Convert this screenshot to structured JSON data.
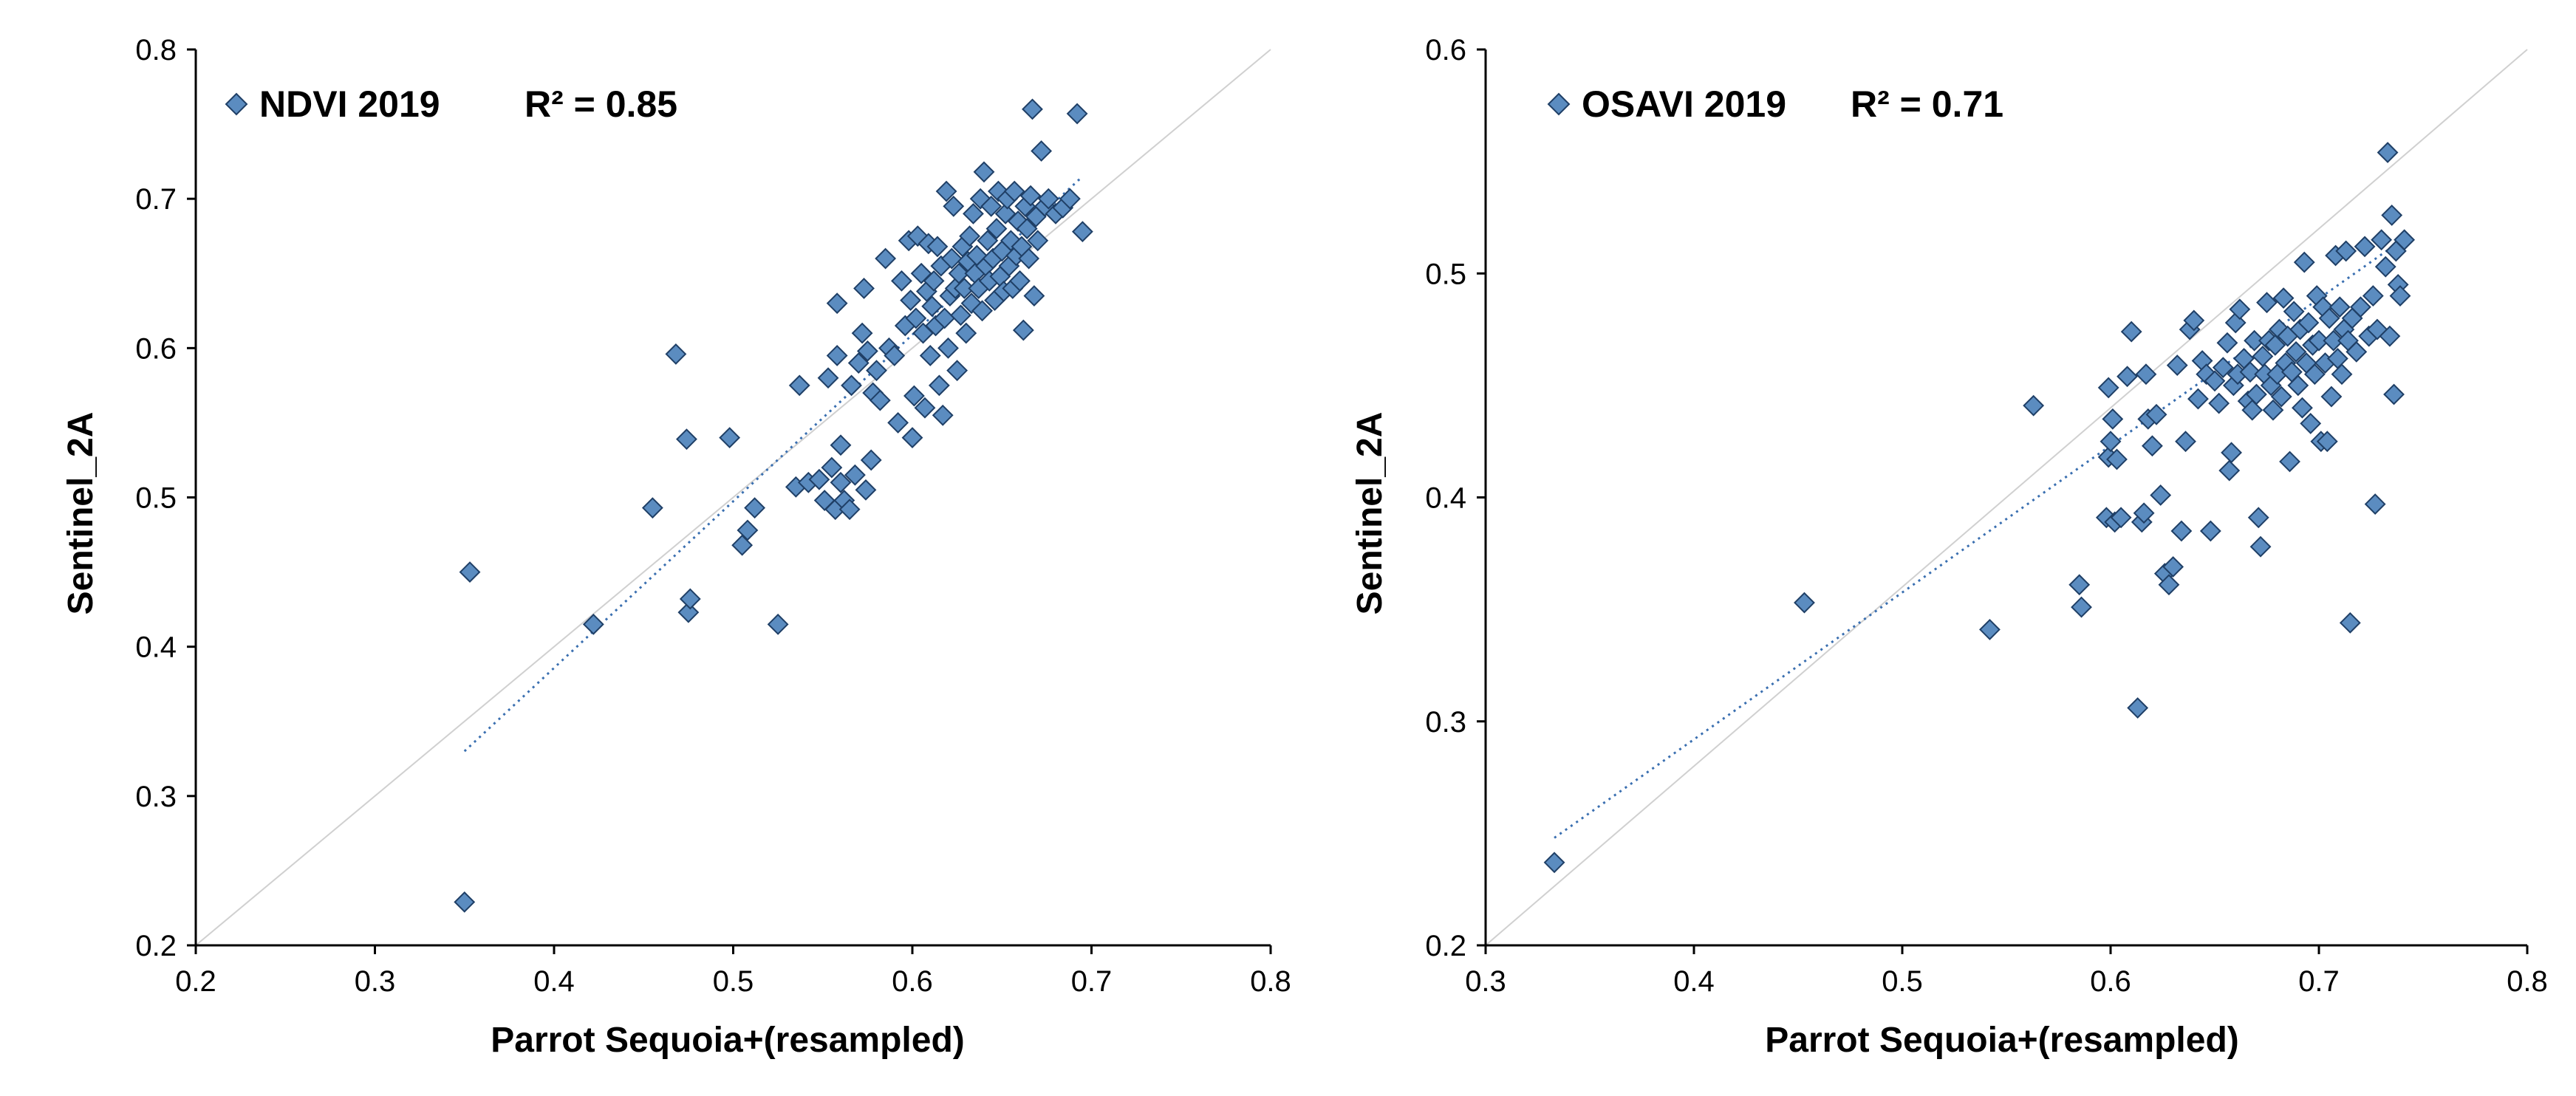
{
  "colors": {
    "marker_fill": "#5b8cc0",
    "marker_stroke": "#1f3f66",
    "trend": "#3a6fb0",
    "one_to_one": "#d0d0d0",
    "axis": "#000000"
  },
  "marker_icon": "diamond-marker-icon",
  "chart_data": [
    {
      "type": "scatter",
      "legend_label": "NDVI 2019",
      "r2_label": "R² = 0.85",
      "xlabel": "Parrot Sequoia+(resampled)",
      "ylabel": "Sentinel_2A",
      "xlim": [
        0.2,
        0.8
      ],
      "ylim": [
        0.2,
        0.8
      ],
      "xticks": [
        "0.2",
        "0.3",
        "0.4",
        "0.5",
        "0.6",
        "0.7",
        "0.8"
      ],
      "yticks": [
        "0.2",
        "0.3",
        "0.4",
        "0.5",
        "0.6",
        "0.7",
        "0.8"
      ],
      "legend_position": "top-left",
      "one_to_one_line": [
        [
          0.2,
          0.2
        ],
        [
          0.8,
          0.8
        ]
      ],
      "trendline": [
        [
          0.35,
          0.33
        ],
        [
          0.695,
          0.715
        ]
      ],
      "points": [
        [
          0.35,
          0.229
        ],
        [
          0.353,
          0.45
        ],
        [
          0.422,
          0.415
        ],
        [
          0.455,
          0.493
        ],
        [
          0.468,
          0.596
        ],
        [
          0.474,
          0.539
        ],
        [
          0.475,
          0.423
        ],
        [
          0.476,
          0.432
        ],
        [
          0.498,
          0.54
        ],
        [
          0.505,
          0.468
        ],
        [
          0.508,
          0.478
        ],
        [
          0.512,
          0.493
        ],
        [
          0.525,
          0.415
        ],
        [
          0.535,
          0.507
        ],
        [
          0.537,
          0.575
        ],
        [
          0.542,
          0.51
        ],
        [
          0.548,
          0.512
        ],
        [
          0.551,
          0.498
        ],
        [
          0.553,
          0.58
        ],
        [
          0.555,
          0.52
        ],
        [
          0.557,
          0.492
        ],
        [
          0.558,
          0.63
        ],
        [
          0.558,
          0.595
        ],
        [
          0.56,
          0.535
        ],
        [
          0.56,
          0.51
        ],
        [
          0.562,
          0.498
        ],
        [
          0.565,
          0.492
        ],
        [
          0.566,
          0.575
        ],
        [
          0.568,
          0.515
        ],
        [
          0.57,
          0.59
        ],
        [
          0.572,
          0.61
        ],
        [
          0.573,
          0.64
        ],
        [
          0.574,
          0.505
        ],
        [
          0.575,
          0.598
        ],
        [
          0.577,
          0.525
        ],
        [
          0.578,
          0.57
        ],
        [
          0.58,
          0.585
        ],
        [
          0.582,
          0.565
        ],
        [
          0.585,
          0.66
        ],
        [
          0.587,
          0.6
        ],
        [
          0.59,
          0.595
        ],
        [
          0.592,
          0.55
        ],
        [
          0.594,
          0.645
        ],
        [
          0.596,
          0.615
        ],
        [
          0.598,
          0.672
        ],
        [
          0.599,
          0.632
        ],
        [
          0.6,
          0.54
        ],
        [
          0.601,
          0.568
        ],
        [
          0.602,
          0.62
        ],
        [
          0.603,
          0.675
        ],
        [
          0.605,
          0.65
        ],
        [
          0.606,
          0.61
        ],
        [
          0.607,
          0.56
        ],
        [
          0.608,
          0.638
        ],
        [
          0.609,
          0.67
        ],
        [
          0.61,
          0.595
        ],
        [
          0.611,
          0.628
        ],
        [
          0.612,
          0.645
        ],
        [
          0.613,
          0.615
        ],
        [
          0.614,
          0.668
        ],
        [
          0.615,
          0.575
        ],
        [
          0.616,
          0.655
        ],
        [
          0.617,
          0.555
        ],
        [
          0.618,
          0.62
        ],
        [
          0.619,
          0.705
        ],
        [
          0.62,
          0.6
        ],
        [
          0.621,
          0.635
        ],
        [
          0.622,
          0.66
        ],
        [
          0.623,
          0.695
        ],
        [
          0.624,
          0.64
        ],
        [
          0.625,
          0.585
        ],
        [
          0.626,
          0.65
        ],
        [
          0.627,
          0.622
        ],
        [
          0.628,
          0.668
        ],
        [
          0.629,
          0.64
        ],
        [
          0.63,
          0.61
        ],
        [
          0.631,
          0.658
        ],
        [
          0.632,
          0.675
        ],
        [
          0.633,
          0.63
        ],
        [
          0.634,
          0.69
        ],
        [
          0.635,
          0.65
        ],
        [
          0.636,
          0.662
        ],
        [
          0.637,
          0.64
        ],
        [
          0.638,
          0.7
        ],
        [
          0.639,
          0.625
        ],
        [
          0.64,
          0.718
        ],
        [
          0.641,
          0.655
        ],
        [
          0.642,
          0.672
        ],
        [
          0.643,
          0.645
        ],
        [
          0.644,
          0.695
        ],
        [
          0.645,
          0.66
        ],
        [
          0.646,
          0.632
        ],
        [
          0.647,
          0.68
        ],
        [
          0.648,
          0.705
        ],
        [
          0.649,
          0.648
        ],
        [
          0.65,
          0.665
        ],
        [
          0.651,
          0.638
        ],
        [
          0.652,
          0.69
        ],
        [
          0.653,
          0.7
        ],
        [
          0.654,
          0.655
        ],
        [
          0.655,
          0.672
        ],
        [
          0.656,
          0.64
        ],
        [
          0.657,
          0.705
        ],
        [
          0.658,
          0.662
        ],
        [
          0.659,
          0.685
        ],
        [
          0.66,
          0.645
        ],
        [
          0.661,
          0.668
        ],
        [
          0.662,
          0.612
        ],
        [
          0.663,
          0.695
        ],
        [
          0.664,
          0.68
        ],
        [
          0.665,
          0.66
        ],
        [
          0.666,
          0.702
        ],
        [
          0.667,
          0.76
        ],
        [
          0.668,
          0.635
        ],
        [
          0.669,
          0.688
        ],
        [
          0.67,
          0.672
        ],
        [
          0.672,
          0.732
        ],
        [
          0.674,
          0.695
        ],
        [
          0.676,
          0.7
        ],
        [
          0.68,
          0.69
        ],
        [
          0.684,
          0.694
        ],
        [
          0.688,
          0.7
        ],
        [
          0.692,
          0.757
        ],
        [
          0.695,
          0.678
        ]
      ]
    },
    {
      "type": "scatter",
      "legend_label": "OSAVI 2019",
      "r2_label": "R² = 0.71",
      "xlabel": "Parrot Sequoia+(resampled)",
      "ylabel": "Sentinel_2A",
      "xlim": [
        0.3,
        0.8
      ],
      "ylim": [
        0.2,
        0.6
      ],
      "xticks": [
        "0.3",
        "0.4",
        "0.5",
        "0.6",
        "0.7",
        "0.8"
      ],
      "yticks": [
        "0.2",
        "0.3",
        "0.4",
        "0.5",
        "0.6"
      ],
      "legend_position": "top-left",
      "one_to_one_line": [
        [
          0.3,
          0.2
        ],
        [
          0.8,
          0.6
        ]
      ],
      "trendline": [
        [
          0.333,
          0.248
        ],
        [
          0.74,
          0.515
        ]
      ],
      "points": [
        [
          0.333,
          0.237
        ],
        [
          0.453,
          0.353
        ],
        [
          0.542,
          0.341
        ],
        [
          0.563,
          0.441
        ],
        [
          0.585,
          0.361
        ],
        [
          0.586,
          0.351
        ],
        [
          0.598,
          0.391
        ],
        [
          0.599,
          0.418
        ],
        [
          0.599,
          0.449
        ],
        [
          0.6,
          0.425
        ],
        [
          0.601,
          0.435
        ],
        [
          0.602,
          0.389
        ],
        [
          0.603,
          0.417
        ],
        [
          0.605,
          0.391
        ],
        [
          0.608,
          0.454
        ],
        [
          0.61,
          0.474
        ],
        [
          0.613,
          0.306
        ],
        [
          0.615,
          0.389
        ],
        [
          0.616,
          0.393
        ],
        [
          0.617,
          0.455
        ],
        [
          0.618,
          0.435
        ],
        [
          0.62,
          0.423
        ],
        [
          0.622,
          0.437
        ],
        [
          0.624,
          0.401
        ],
        [
          0.626,
          0.366
        ],
        [
          0.628,
          0.361
        ],
        [
          0.63,
          0.369
        ],
        [
          0.632,
          0.459
        ],
        [
          0.634,
          0.385
        ],
        [
          0.636,
          0.425
        ],
        [
          0.638,
          0.475
        ],
        [
          0.64,
          0.479
        ],
        [
          0.642,
          0.444
        ],
        [
          0.644,
          0.461
        ],
        [
          0.646,
          0.455
        ],
        [
          0.648,
          0.385
        ],
        [
          0.65,
          0.452
        ],
        [
          0.652,
          0.442
        ],
        [
          0.654,
          0.458
        ],
        [
          0.656,
          0.469
        ],
        [
          0.657,
          0.412
        ],
        [
          0.658,
          0.42
        ],
        [
          0.659,
          0.45
        ],
        [
          0.66,
          0.478
        ],
        [
          0.661,
          0.455
        ],
        [
          0.662,
          0.484
        ],
        [
          0.664,
          0.462
        ],
        [
          0.666,
          0.443
        ],
        [
          0.667,
          0.456
        ],
        [
          0.668,
          0.439
        ],
        [
          0.669,
          0.47
        ],
        [
          0.67,
          0.446
        ],
        [
          0.671,
          0.391
        ],
        [
          0.672,
          0.378
        ],
        [
          0.673,
          0.463
        ],
        [
          0.674,
          0.455
        ],
        [
          0.675,
          0.487
        ],
        [
          0.676,
          0.47
        ],
        [
          0.677,
          0.45
        ],
        [
          0.678,
          0.439
        ],
        [
          0.679,
          0.468
        ],
        [
          0.68,
          0.455
        ],
        [
          0.681,
          0.475
        ],
        [
          0.682,
          0.445
        ],
        [
          0.683,
          0.489
        ],
        [
          0.684,
          0.46
        ],
        [
          0.685,
          0.472
        ],
        [
          0.686,
          0.416
        ],
        [
          0.687,
          0.456
        ],
        [
          0.688,
          0.483
        ],
        [
          0.689,
          0.465
        ],
        [
          0.69,
          0.45
        ],
        [
          0.691,
          0.475
        ],
        [
          0.692,
          0.44
        ],
        [
          0.693,
          0.505
        ],
        [
          0.694,
          0.46
        ],
        [
          0.695,
          0.478
        ],
        [
          0.696,
          0.433
        ],
        [
          0.697,
          0.468
        ],
        [
          0.698,
          0.455
        ],
        [
          0.699,
          0.49
        ],
        [
          0.7,
          0.47
        ],
        [
          0.701,
          0.425
        ],
        [
          0.702,
          0.485
        ],
        [
          0.703,
          0.46
        ],
        [
          0.704,
          0.425
        ],
        [
          0.705,
          0.48
        ],
        [
          0.706,
          0.445
        ],
        [
          0.707,
          0.47
        ],
        [
          0.708,
          0.508
        ],
        [
          0.709,
          0.462
        ],
        [
          0.71,
          0.485
        ],
        [
          0.711,
          0.455
        ],
        [
          0.712,
          0.475
        ],
        [
          0.713,
          0.51
        ],
        [
          0.714,
          0.47
        ],
        [
          0.715,
          0.344
        ],
        [
          0.716,
          0.48
        ],
        [
          0.718,
          0.465
        ],
        [
          0.72,
          0.485
        ],
        [
          0.722,
          0.512
        ],
        [
          0.724,
          0.472
        ],
        [
          0.726,
          0.49
        ],
        [
          0.727,
          0.397
        ],
        [
          0.728,
          0.475
        ],
        [
          0.73,
          0.515
        ],
        [
          0.732,
          0.503
        ],
        [
          0.733,
          0.554
        ],
        [
          0.734,
          0.472
        ],
        [
          0.735,
          0.526
        ],
        [
          0.736,
          0.446
        ],
        [
          0.737,
          0.51
        ],
        [
          0.738,
          0.495
        ],
        [
          0.739,
          0.49
        ],
        [
          0.741,
          0.515
        ]
      ]
    }
  ]
}
